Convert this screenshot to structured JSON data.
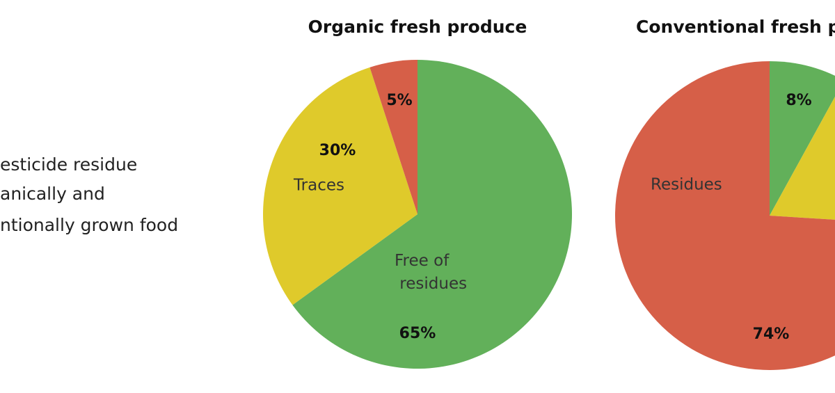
{
  "caption": [
    "esticide residue",
    "anically and",
    "ntionally grown food"
  ],
  "chart_data": [
    {
      "type": "pie",
      "title": "Organic fresh produce",
      "categories": [
        "Free of residues",
        "Traces",
        null
      ],
      "values": [
        65,
        30,
        5
      ],
      "value_labels": [
        "65%",
        "30%",
        "5%"
      ],
      "colors": [
        "#62b05a",
        "#dfca2b",
        "#d65f48"
      ]
    },
    {
      "type": "pie",
      "title": "Conventional fresh p",
      "categories": [
        null,
        null,
        "Residues"
      ],
      "values": [
        8,
        18,
        74
      ],
      "value_labels": [
        "8%",
        null,
        "74%"
      ],
      "colors": [
        "#62b05a",
        "#dfca2b",
        "#d65f48"
      ]
    }
  ]
}
